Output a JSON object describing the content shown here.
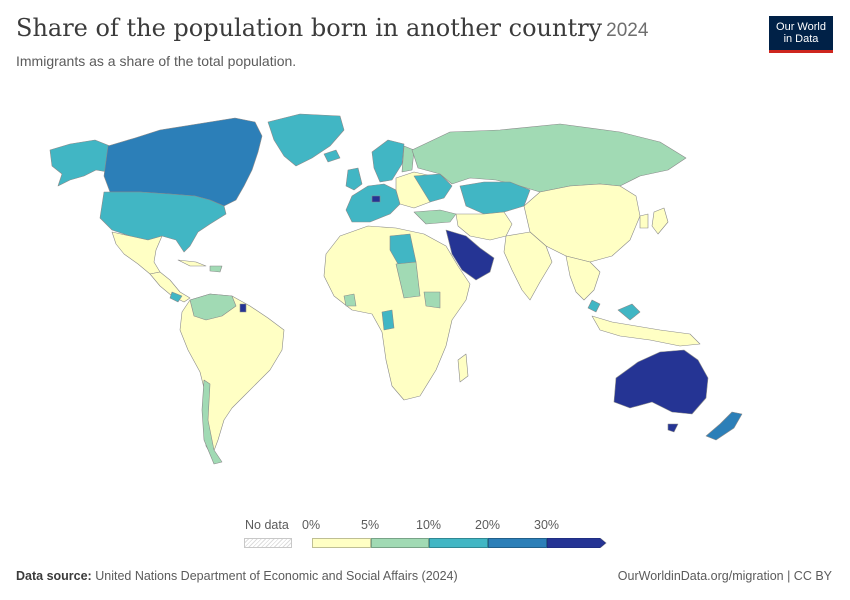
{
  "header": {
    "title": "Share of the population born in another country",
    "year": "2024",
    "subtitle": "Immigrants as a share of the total population."
  },
  "logo": {
    "line1": "Our World",
    "line2": "in Data",
    "bg_color": "#002147",
    "accent_color": "#ce261e"
  },
  "legend": {
    "no_data_label": "No data",
    "ticks": [
      "0%",
      "5%",
      "10%",
      "20%",
      "30%"
    ],
    "bins": [
      {
        "from": 0,
        "to": 5,
        "color": "#ffffc4"
      },
      {
        "from": 5,
        "to": 10,
        "color": "#a1dab4"
      },
      {
        "from": 10,
        "to": 20,
        "color": "#41b6c4"
      },
      {
        "from": 20,
        "to": 30,
        "color": "#2c7fb8"
      },
      {
        "from": 30,
        "to": null,
        "color": "#253494"
      }
    ]
  },
  "map_regions": [
    {
      "region": "Canada",
      "bin": "20-30%"
    },
    {
      "region": "United States",
      "bin": "10-20%"
    },
    {
      "region": "Greenland",
      "bin": "10-20%"
    },
    {
      "region": "Mexico",
      "bin": "0-5%"
    },
    {
      "region": "Central America",
      "bin": "0-5%"
    },
    {
      "region": "South America",
      "bin": "0-5%"
    },
    {
      "region": "Chile",
      "bin": "5-10%"
    },
    {
      "region": "Argentina",
      "bin": "0-5%"
    },
    {
      "region": "Russia",
      "bin": "5-10%"
    },
    {
      "region": "Kazakhstan",
      "bin": "10-20%"
    },
    {
      "region": "Scandinavia",
      "bin": "10-20%"
    },
    {
      "region": "Western Europe",
      "bin": "10-20%"
    },
    {
      "region": "Eastern Europe",
      "bin": "0-5%"
    },
    {
      "region": "China",
      "bin": "0-5%"
    },
    {
      "region": "India",
      "bin": "0-5%"
    },
    {
      "region": "Southeast Asia",
      "bin": "0-5%"
    },
    {
      "region": "Africa",
      "bin": "0-5%"
    },
    {
      "region": "Libya",
      "bin": "10-20%"
    },
    {
      "region": "Gabon",
      "bin": "10-20%"
    },
    {
      "region": "Saudi Arabia and Gulf",
      "bin": "30%+"
    },
    {
      "region": "Australia",
      "bin": "30%+"
    },
    {
      "region": "New Zealand",
      "bin": "20-30%"
    }
  ],
  "footer": {
    "source_label": "Data source:",
    "source_text": "United Nations Department of Economic and Social Affairs (2024)",
    "link": "OurWorldinData.org/migration | CC BY"
  }
}
